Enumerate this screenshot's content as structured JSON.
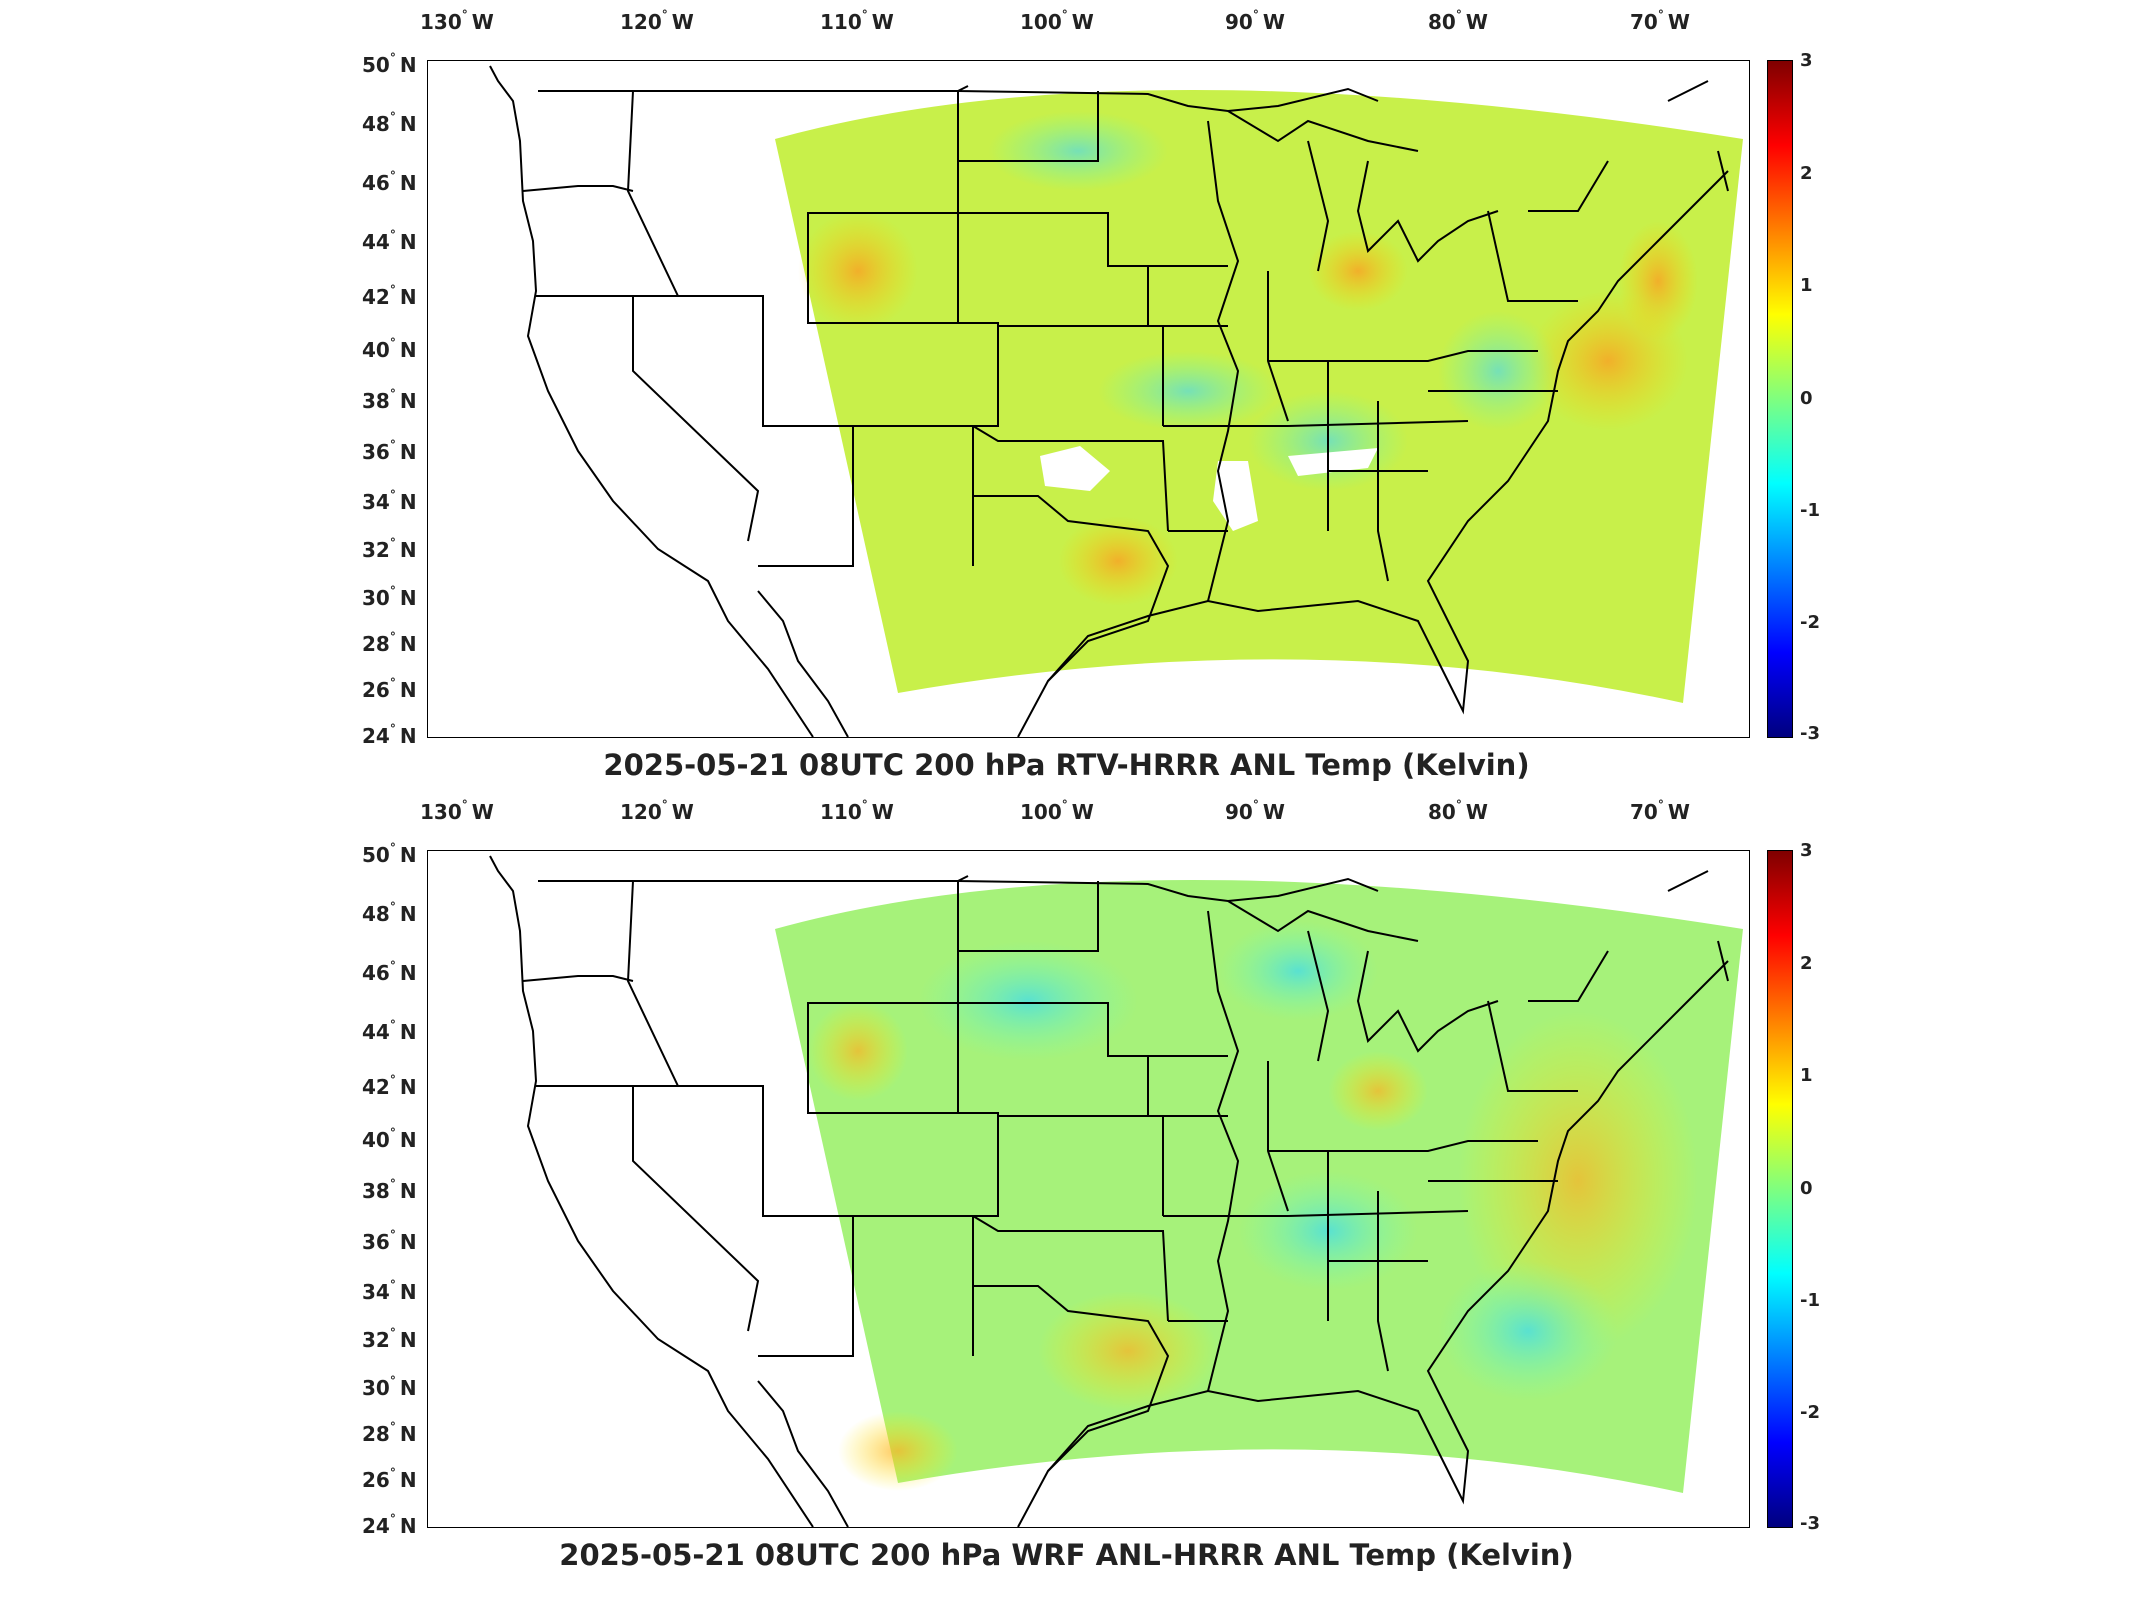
{
  "lon_ticks": [
    "130",
    "120",
    "110",
    "100",
    "90",
    "80",
    "70"
  ],
  "lon_hemisphere": "W",
  "lat_ticks": [
    "50",
    "48",
    "46",
    "44",
    "42",
    "40",
    "38",
    "36",
    "34",
    "32",
    "30",
    "28",
    "26",
    "24"
  ],
  "lat_hemisphere": "N",
  "colorbar_ticks": [
    "3",
    "2",
    "1",
    "0",
    "-1",
    "-2",
    "-3"
  ],
  "colorbar_colormap": "jet",
  "colorbar_range": [
    -3,
    3
  ],
  "panels": [
    {
      "title": "2025-05-21 08UTC 200 hPa RTV-HRRR ANL Temp (Kelvin)",
      "field_tint": "#c8f04a"
    },
    {
      "title": "2025-05-21 08UTC 200 hPa WRF ANL-HRRR ANL Temp (Kelvin)",
      "field_tint": "#a6f27a"
    }
  ]
}
